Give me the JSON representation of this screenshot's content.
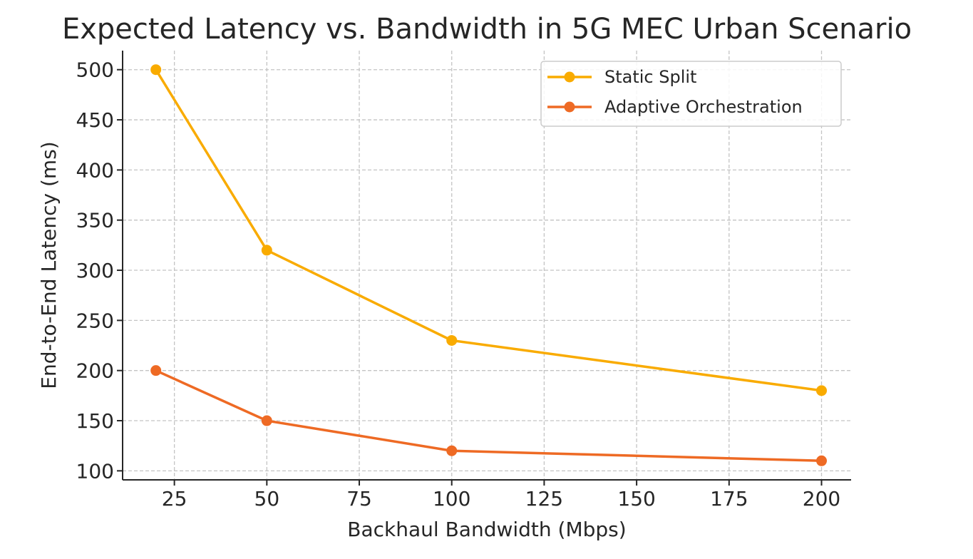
{
  "chart_data": {
    "type": "line",
    "title": "Expected Latency vs. Bandwidth in 5G MEC Urban Scenario",
    "xlabel": "Backhaul Bandwidth (Mbps)",
    "ylabel": "End-to-End Latency (ms)",
    "x": [
      20,
      50,
      100,
      200
    ],
    "xlim": [
      11,
      208
    ],
    "ylim": [
      91,
      519
    ],
    "xticks": [
      25,
      50,
      75,
      100,
      125,
      150,
      175,
      200
    ],
    "yticks": [
      100,
      150,
      200,
      250,
      300,
      350,
      400,
      450,
      500
    ],
    "grid": true,
    "legend_position": "top-right",
    "series": [
      {
        "name": "Static Split",
        "color": "#F9AB00",
        "values": [
          500,
          320,
          230,
          180
        ]
      },
      {
        "name": "Adaptive Orchestration",
        "color": "#EE6A24",
        "values": [
          200,
          150,
          120,
          110
        ]
      }
    ]
  }
}
